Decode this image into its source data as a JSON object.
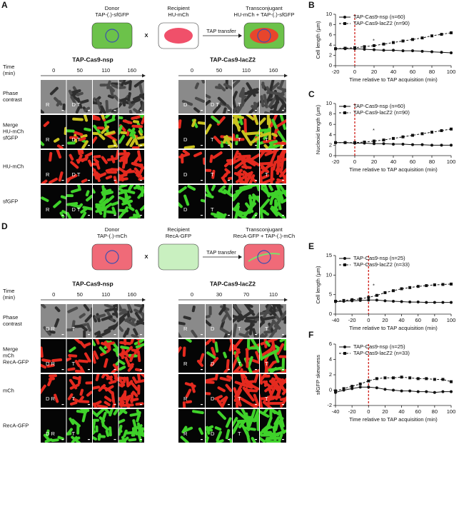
{
  "panel_a": {
    "label": "A",
    "schematic": {
      "donor": "Donor",
      "donor_plasmid": "TAP-(.)-sfGFP",
      "cross": "X",
      "recipient": "Recipient",
      "recipient_marker": "HU-mCh",
      "transfer": "TAP transfer",
      "transconjugant": "Transconjugant",
      "transconjugant_markers": "HU-mCh + TAP-(.)-sfGFP"
    },
    "groups": [
      "TAP-Cas9-nsp",
      "TAP-Cas9-lacZ2"
    ],
    "time_label": [
      "Time",
      "(min)"
    ],
    "times": [
      [
        0,
        50,
        110,
        160
      ],
      [
        0,
        50,
        110,
        160
      ]
    ],
    "rows": [
      {
        "label": [
          "Phase",
          "contrast"
        ],
        "cells": [
          "R",
          "D T",
          null,
          null,
          "D",
          "D T",
          "T",
          null
        ]
      },
      {
        "label": [
          "Merge",
          "HU-mCh",
          "sfGFP"
        ],
        "cells": [
          "R",
          "D T",
          null,
          null,
          "D",
          "T",
          "T",
          "T"
        ]
      },
      {
        "label": [
          "HU-mCh"
        ],
        "cells": [
          "R",
          "D T",
          null,
          null,
          "D",
          "T",
          null,
          "T"
        ]
      },
      {
        "label": [
          "sfGFP"
        ],
        "cells": [
          "R",
          "D T",
          null,
          null,
          "D",
          "T",
          null,
          null
        ]
      }
    ]
  },
  "panel_d": {
    "label": "D",
    "schematic": {
      "donor": "Donor",
      "donor_plasmid": "TAP-(.)-mCh",
      "cross": "X",
      "recipient": "Recipient",
      "recipient_marker": "RecA-GFP",
      "transfer": "TAP transfer",
      "transconjugant": "Transconjugant",
      "transconjugant_markers": "RecA-GFP + TAP-(.)-mCh"
    },
    "groups": [
      "TAP-Cas9-nsp",
      "TAP-Cas9-lacZ2"
    ],
    "time_label": [
      "Time",
      "(min)"
    ],
    "times": [
      [
        0,
        50,
        110,
        160
      ],
      [
        0,
        30,
        70,
        110
      ]
    ],
    "rows": [
      {
        "label": [
          "Phase",
          "contrast"
        ],
        "cells": [
          "D R",
          "T",
          null,
          null,
          "R",
          "D",
          "T",
          "T"
        ]
      },
      {
        "label": [
          "Merge",
          "mCh",
          "RecA-GFP"
        ],
        "cells": [
          "D R",
          "T",
          null,
          null,
          "R",
          "D",
          "T",
          "T"
        ]
      },
      {
        "label": [
          "mCh"
        ],
        "cells": [
          "D R",
          "T",
          null,
          null,
          "R",
          "D",
          "T",
          "T"
        ]
      },
      {
        "label": [
          "RecA-GFP"
        ],
        "cells": [
          "D R",
          "T",
          null,
          null,
          "R",
          "D",
          "T",
          null
        ]
      }
    ]
  },
  "chart_data": [
    {
      "type": "line",
      "label": "B",
      "annotation": "*",
      "x_label": "Time relative to TAP acquisition (min)",
      "y_label": "Cell length (µm)",
      "x": [
        -20,
        -10,
        0,
        10,
        20,
        30,
        40,
        50,
        60,
        70,
        80,
        90,
        100
      ],
      "series": [
        {
          "name": "TAP-Cas9-nsp (n=60)",
          "color": "#111111",
          "marker": "circle",
          "dashed": false,
          "values": [
            3.3,
            3.3,
            3.3,
            3.2,
            3.1,
            3.0,
            3.0,
            2.9,
            2.9,
            2.8,
            2.7,
            2.6,
            2.5
          ]
        },
        {
          "name": "TAP-Cas9-lacZ2 (n=90)",
          "color": "#111111",
          "marker": "square",
          "dashed": true,
          "values": [
            3.3,
            3.4,
            3.5,
            3.7,
            3.9,
            4.2,
            4.5,
            4.8,
            5.1,
            5.4,
            5.8,
            6.1,
            6.4
          ]
        }
      ],
      "xlim": [
        -20,
        100
      ],
      "xticks": [
        -20,
        0,
        20,
        40,
        60,
        80,
        100
      ],
      "ylim": [
        0,
        10
      ],
      "yticks": [
        0,
        2,
        4,
        6,
        8,
        10
      ],
      "marker_line_x": 0
    },
    {
      "type": "line",
      "label": "C",
      "annotation": "*",
      "x_label": "Time relative to TAP acquisition (min)",
      "y_label": "Nucleoid length (µm)",
      "x": [
        -20,
        -10,
        0,
        10,
        20,
        30,
        40,
        50,
        60,
        70,
        80,
        90,
        100
      ],
      "series": [
        {
          "name": "TAP-Cas9-nsp (n=60)",
          "color": "#111111",
          "marker": "circle",
          "dashed": false,
          "values": [
            2.5,
            2.5,
            2.4,
            2.4,
            2.3,
            2.3,
            2.2,
            2.2,
            2.1,
            2.1,
            2.0,
            2.0,
            2.0
          ]
        },
        {
          "name": "TAP-Cas9-lacZ2 (n=90)",
          "color": "#111111",
          "marker": "square",
          "dashed": true,
          "values": [
            2.5,
            2.5,
            2.5,
            2.6,
            2.8,
            3.0,
            3.3,
            3.6,
            3.9,
            4.2,
            4.5,
            4.8,
            5.1
          ]
        }
      ],
      "xlim": [
        -20,
        100
      ],
      "xticks": [
        -20,
        0,
        20,
        40,
        60,
        80,
        100
      ],
      "ylim": [
        0,
        10
      ],
      "yticks": [
        0,
        2,
        4,
        6,
        8,
        10
      ],
      "marker_line_x": 0
    },
    {
      "type": "line",
      "label": "E",
      "annotation": "*",
      "x_label": "Time relative to TAP acquisition (min)",
      "y_label": "Cell length (µm)",
      "x": [
        -40,
        -30,
        -20,
        -10,
        0,
        10,
        20,
        30,
        40,
        50,
        60,
        70,
        80,
        90,
        100
      ],
      "series": [
        {
          "name": "TAP-Cas9-nsp (n=25)",
          "color": "#111111",
          "marker": "circle",
          "dashed": false,
          "values": [
            3.2,
            3.3,
            3.4,
            3.5,
            3.6,
            3.6,
            3.4,
            3.3,
            3.2,
            3.1,
            3.1,
            3.0,
            3.0,
            3.0,
            3.0
          ]
        },
        {
          "name": "TAP-Cas9-lacZ2 (n=33)",
          "color": "#111111",
          "marker": "square",
          "dashed": true,
          "values": [
            3.3,
            3.5,
            3.7,
            3.9,
            4.3,
            4.8,
            5.5,
            6.0,
            6.5,
            6.8,
            7.1,
            7.3,
            7.5,
            7.6,
            7.7
          ]
        }
      ],
      "xlim": [
        -40,
        100
      ],
      "xticks": [
        -40,
        -20,
        0,
        20,
        40,
        60,
        80,
        100
      ],
      "ylim": [
        0,
        15
      ],
      "yticks": [
        0,
        5,
        10,
        15
      ],
      "marker_line_x": 0
    },
    {
      "type": "line",
      "label": "F",
      "x_label": "Time relative to TAP acquisition (min)",
      "y_label": "sfGFP skewness",
      "x": [
        -40,
        -30,
        -20,
        -10,
        0,
        10,
        20,
        30,
        40,
        50,
        60,
        70,
        80,
        90,
        100
      ],
      "series": [
        {
          "name": "TAP-Cas9-nsp (n=25)",
          "color": "#111111",
          "marker": "circle",
          "dashed": false,
          "values": [
            -0.3,
            0.0,
            0.2,
            0.4,
            0.4,
            0.3,
            0.1,
            0.0,
            -0.1,
            -0.1,
            -0.2,
            -0.2,
            -0.3,
            -0.2,
            -0.2
          ]
        },
        {
          "name": "TAP-Cas9-lacZ2 (n=33)",
          "color": "#111111",
          "marker": "square",
          "dashed": true,
          "values": [
            -0.1,
            0.2,
            0.5,
            0.8,
            1.2,
            1.5,
            1.6,
            1.6,
            1.7,
            1.6,
            1.5,
            1.5,
            1.4,
            1.4,
            1.1
          ]
        }
      ],
      "xlim": [
        -40,
        100
      ],
      "xticks": [
        -40,
        -20,
        0,
        20,
        40,
        60,
        80,
        100
      ],
      "ylim": [
        -2,
        6
      ],
      "yticks": [
        -2,
        0,
        2,
        4,
        6
      ],
      "marker_line_x": 0
    }
  ]
}
